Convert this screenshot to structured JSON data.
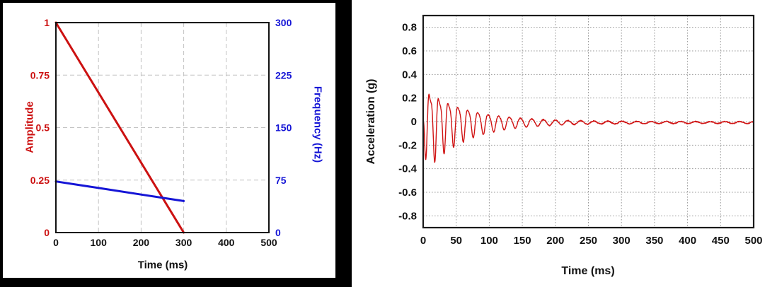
{
  "figure": {
    "background": "#ffffff",
    "left_panel_frame_color": "#000000"
  },
  "chart_data": [
    {
      "type": "line",
      "name": "sine-sweep-profile",
      "title": "",
      "xlabel": "Time (ms)",
      "xlim": [
        0,
        500
      ],
      "xticks": {
        "values": [
          0,
          100,
          200,
          300,
          400,
          500
        ],
        "labels": [
          "0",
          "100",
          "200",
          "300",
          "400",
          "500"
        ]
      },
      "left_axis": {
        "label": "Amplitude",
        "color": "#cc1111",
        "lim": [
          0,
          1
        ],
        "ticks": {
          "values": [
            0,
            0.25,
            0.5,
            0.75,
            1
          ],
          "labels": [
            "0",
            "0.25",
            "0.5",
            "0.75",
            "1"
          ]
        }
      },
      "right_axis": {
        "label": "Frequency (Hz)",
        "color": "#1515d6",
        "lim": [
          0,
          300
        ],
        "ticks": {
          "values": [
            0,
            75,
            150,
            225,
            300
          ],
          "labels": [
            "0",
            "75",
            "150",
            "225",
            "300"
          ]
        }
      },
      "grid": {
        "style": "dashed",
        "color": "#c2c2c2",
        "x_values": [
          100,
          200,
          300,
          400
        ],
        "left_y_values": [
          0.25,
          0.5,
          0.75
        ]
      },
      "axis_color": "#111111",
      "legend": "none",
      "series": [
        {
          "name": "Amplitude",
          "axis": "left",
          "color": "#cc1111",
          "width": 3,
          "points": [
            [
              0,
              1
            ],
            [
              300,
              0
            ]
          ]
        },
        {
          "name": "Frequency (Hz)",
          "axis": "right",
          "color": "#1515d6",
          "width": 3,
          "points": [
            [
              0,
              73
            ],
            [
              100,
              63.7
            ],
            [
              200,
              54.3
            ],
            [
              300,
              45
            ]
          ]
        }
      ]
    },
    {
      "type": "line",
      "name": "acceleration-response",
      "title": "",
      "xlabel": "Time (ms)",
      "ylabel": "Acceleration (g)",
      "xlim": [
        0,
        500
      ],
      "ylim": [
        -0.9,
        0.9
      ],
      "xticks": {
        "values": [
          0,
          50,
          100,
          150,
          200,
          250,
          300,
          350,
          400,
          450,
          500
        ],
        "labels": [
          "0",
          "50",
          "100",
          "150",
          "200",
          "250",
          "300",
          "350",
          "400",
          "450",
          "500"
        ]
      },
      "yticks": {
        "values": [
          0.8,
          0.6,
          0.4,
          0.2,
          0,
          -0.2,
          -0.4,
          -0.6,
          -0.8
        ],
        "labels": [
          "0.8",
          "0.6",
          "0.4",
          "0.2",
          "0",
          "-0.2",
          "-0.4",
          "-0.6",
          "-0.8"
        ]
      },
      "grid": {
        "style": "dotted",
        "color": "#9a9a9a"
      },
      "axis_color": "#1a1a1a",
      "legend": "none",
      "series": [
        {
          "name": "Acceleration",
          "color": "#d01414",
          "width": 1.4,
          "generator": {
            "model": "swept_damped_sine",
            "t_start_ms": 0,
            "t_end_ms": 500,
            "dt_ms": 0.4,
            "f0_hz": 73,
            "f1_hz": 45,
            "sweep_end_ms": 300,
            "peak_g": 0.34,
            "decay_ms": 62,
            "ramp_ms": 3,
            "harmonic_ratio": 0.35,
            "harmonic_decay_ms": 45,
            "residual_g": 0.008,
            "offset_g": -0.008,
            "noise_g": 0.004,
            "start_phase": "inverted"
          },
          "peak_samples": [
            [
              4,
              -0.18
            ],
            [
              10,
              0.27
            ],
            [
              15,
              -0.31
            ],
            [
              20,
              0.15
            ],
            [
              33,
              0.15
            ],
            [
              48,
              0.14
            ],
            [
              62,
              0.13
            ],
            [
              77,
              0.11
            ],
            [
              92,
              0.09
            ],
            [
              106,
              0.08
            ],
            [
              120,
              0.07
            ],
            [
              135,
              0.05
            ],
            [
              150,
              0.04
            ],
            [
              180,
              0.03
            ],
            [
              210,
              0.02
            ],
            [
              250,
              0.012
            ],
            [
              300,
              0.01
            ],
            [
              400,
              0.008
            ],
            [
              500,
              0.008
            ]
          ]
        }
      ]
    }
  ]
}
